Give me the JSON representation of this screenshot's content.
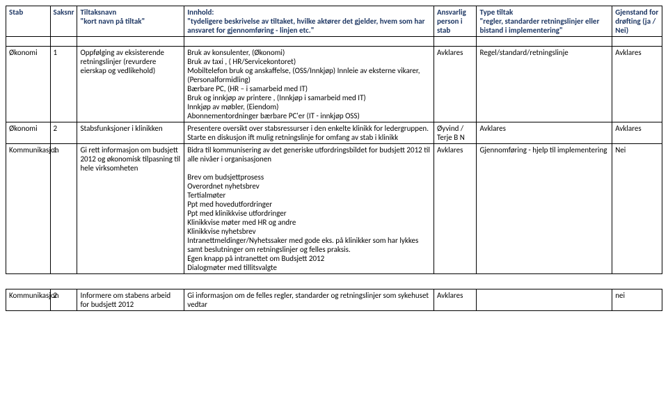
{
  "header": {
    "stab": "Stab",
    "saksnr": "Saksnr",
    "tiltaksnavn": "Tiltaksnavn\n\"kort navn på tiltak\"",
    "innhold": "Innhold:\n\"tydeligere beskrivelse av tiltaket, hvilke aktører det gjelder, hvem som har ansvaret for gjennomføring - linjen etc.\"",
    "ansvarlig": "Ansvarlig person i stab",
    "type": "Type tiltak\n\"regler, standarder retningslinjer eller bistand i implementering\"",
    "gjenstand": "Gjenstand for drøfting (ja / Nei)"
  },
  "rows": [
    {
      "stab": "Økonomi",
      "saksnr": "1",
      "navn": "Oppfølging av eksisterende retningslinjer (revurdere eierskap og vedlikehold)",
      "innhold": "Bruk av konsulenter, (Økonomi)\nBruk av taxi , ( HR/Servicekontoret)\nMobiltelefon bruk og anskaffelse, (OSS/Innkjøp) Innleie av eksterne vikarer, (Personalformidling)\nBærbare  PC, (HR – i samarbeid med IT)\nBruk og innkjøp av printere , (Innkjøp i samarbeid med IT)\nInnkjøp av møbler, (Eiendom)\nAbonnementordninger bærbare PC'er (IT - innkjøp OSS)",
      "ansvarlig": "Avklares",
      "type": "Regel/standard/retningslinje",
      "gjenstand": "Avklares"
    },
    {
      "stab": "Økonomi",
      "saksnr": "2",
      "navn": "Stabsfunksjoner i klinikken",
      "innhold": "Presentere oversikt over stabsressurser i den enkelte klinikk for ledergruppen. Starte en diskusjon ift mulig retningslinje for omfang av stab i klinikk",
      "ansvarlig": "Øyvind / Terje B N",
      "type": "Avklares",
      "gjenstand": "Avklares"
    },
    {
      "stab": "Kommunikasjon",
      "saksnr": "1",
      "navn": "Gi rett informasjon om budsjett 2012 og økonomisk tilpasning til hele virksomheten",
      "innhold": "Bidra til kommunisering av det generiske utfordringsbildet for budsjett 2012 til alle nivåer i organisasjonen\n\nBrev om budsjettprosess\nOverordnet nyhetsbrev\nTertialmøter\nPpt med hovedutfordringer\nPpt med klinikkvise utfordringer\nKlinikkvise møter med HR og andre\nKlinikkvise nyhetsbrev\nIntranettmeldinger/Nyhetssaker med gode eks. på klinikker som har lykkes samt beslutninger om retningslinjer og felles praksis.\nEgen knapp på intranettet om Budsjett 2012\nDialogmøter med tillitsvalgte",
      "ansvarlig": "Avklares",
      "type": "Gjennomføring - hjelp til implementering",
      "gjenstand": "Nei"
    }
  ],
  "footer": {
    "stab": "Kommunikasjon",
    "saksnr": "2",
    "navn": "Informere om stabens arbeid for budsjett 2012",
    "innhold": "Gi informasjon om de felles regler, standarder og retningslinjer som sykehuset vedtar",
    "ansvarlig": "Avklares",
    "type": "",
    "gjenstand": "nei"
  },
  "colors": {
    "header_text": "#1f3864",
    "border": "#000000",
    "background": "#ffffff"
  }
}
